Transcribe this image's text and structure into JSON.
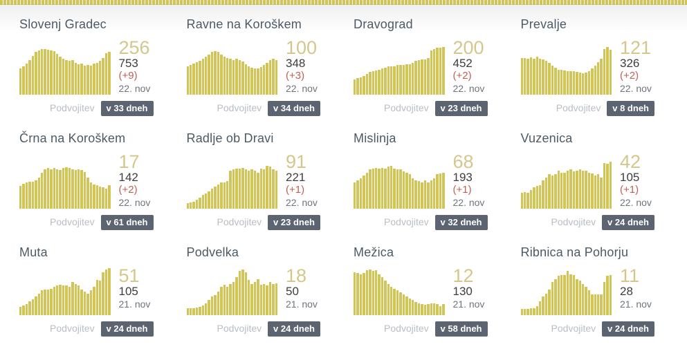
{
  "labels": {
    "doubling": "Podvojitev"
  },
  "colors": {
    "bar": "#d3c456",
    "big_number": "#d5c78c",
    "total": "#3c3c3c",
    "delta_red": "#bf6055",
    "date_gray": "#6d747d",
    "doubling_label_gray": "#b8bec4",
    "badge_bg": "#5b6470",
    "badge_text": "#ffffff",
    "title": "#4c5a66"
  },
  "chart_data": [
    {
      "type": "bar",
      "title": "Slovenj Gradec",
      "latest": "256",
      "total": "753",
      "delta": "(+9)",
      "date": "22. nov",
      "doubling": "v 33 dneh",
      "values": [
        0.55,
        0.58,
        0.64,
        0.72,
        0.8,
        0.88,
        0.92,
        0.94,
        0.95,
        0.93,
        0.92,
        0.9,
        0.84,
        0.79,
        0.74,
        0.72,
        0.7,
        0.71,
        0.66,
        0.63,
        0.64,
        0.6,
        0.62,
        0.6,
        0.64,
        0.66,
        0.7,
        0.76,
        0.86,
        0.88
      ]
    },
    {
      "type": "bar",
      "title": "Ravne na Koroškem",
      "latest": "100",
      "total": "348",
      "delta": "(+3)",
      "date": "22. nov",
      "doubling": "v 34 dneh",
      "values": [
        0.58,
        0.61,
        0.64,
        0.67,
        0.7,
        0.74,
        0.78,
        0.83,
        0.88,
        0.9,
        0.88,
        0.83,
        0.79,
        0.76,
        0.74,
        0.72,
        0.74,
        0.72,
        0.68,
        0.63,
        0.59,
        0.56,
        0.54,
        0.54,
        0.57,
        0.61,
        0.66,
        0.72,
        0.74,
        0.72
      ]
    },
    {
      "type": "bar",
      "title": "Dravograd",
      "latest": "200",
      "total": "452",
      "delta": "(+2)",
      "date": "22. nov",
      "doubling": "v 23 dneh",
      "values": [
        0.32,
        0.34,
        0.36,
        0.39,
        0.43,
        0.47,
        0.49,
        0.5,
        0.52,
        0.54,
        0.56,
        0.58,
        0.59,
        0.59,
        0.61,
        0.61,
        0.62,
        0.63,
        0.63,
        0.66,
        0.7,
        0.72,
        0.73,
        0.73,
        0.76,
        0.91,
        0.95,
        0.97,
        0.97,
        0.98
      ]
    },
    {
      "type": "bar",
      "title": "Prevalje",
      "latest": "121",
      "total": "326",
      "delta": "(+2)",
      "date": "22. nov",
      "doubling": "v 8 dneh",
      "values": [
        0.76,
        0.76,
        0.75,
        0.77,
        0.75,
        0.78,
        0.74,
        0.73,
        0.7,
        0.66,
        0.6,
        0.56,
        0.52,
        0.51,
        0.5,
        0.49,
        0.48,
        0.48,
        0.47,
        0.46,
        0.45,
        0.46,
        0.49,
        0.54,
        0.6,
        0.67,
        0.75,
        0.95,
        0.98,
        0.93
      ]
    },
    {
      "type": "bar",
      "title": "Črna na Koroškem",
      "latest": "17",
      "total": "142",
      "delta": "(+2)",
      "date": "22. nov",
      "doubling": "v 61 dneh",
      "values": [
        0.47,
        0.52,
        0.54,
        0.56,
        0.56,
        0.59,
        0.65,
        0.74,
        0.82,
        0.84,
        0.82,
        0.84,
        0.82,
        0.8,
        0.84,
        0.86,
        0.84,
        0.82,
        0.8,
        0.82,
        0.8,
        0.76,
        0.64,
        0.54,
        0.5,
        0.48,
        0.46,
        0.44,
        0.42,
        0.48
      ]
    },
    {
      "type": "bar",
      "title": "Radlje ob Dravi",
      "latest": "91",
      "total": "221",
      "delta": "(+1)",
      "date": "22. nov",
      "doubling": "v 23 dneh",
      "values": [
        0.12,
        0.13,
        0.15,
        0.18,
        0.23,
        0.28,
        0.32,
        0.36,
        0.42,
        0.46,
        0.5,
        0.54,
        0.54,
        0.57,
        0.78,
        0.81,
        0.83,
        0.83,
        0.85,
        0.81,
        0.78,
        0.81,
        0.79,
        0.75,
        0.83,
        0.81,
        0.88,
        0.87,
        0.81,
        0.78
      ]
    },
    {
      "type": "bar",
      "title": "Mislinja",
      "latest": "68",
      "total": "193",
      "delta": "(+1)",
      "date": "22. nov",
      "doubling": "v 32 dneh",
      "values": [
        0.54,
        0.58,
        0.63,
        0.69,
        0.75,
        0.81,
        0.83,
        0.85,
        0.83,
        0.85,
        0.83,
        0.87,
        0.88,
        0.83,
        0.81,
        0.81,
        0.77,
        0.75,
        0.71,
        0.63,
        0.59,
        0.57,
        0.55,
        0.58,
        0.55,
        0.59,
        0.63,
        0.71,
        0.73,
        0.75
      ]
    },
    {
      "type": "bar",
      "title": "Vuzenica",
      "latest": "42",
      "total": "105",
      "delta": "(+1)",
      "date": "22. nov",
      "doubling": "v 24 dneh",
      "values": [
        0.33,
        0.35,
        0.33,
        0.38,
        0.45,
        0.47,
        0.49,
        0.58,
        0.65,
        0.71,
        0.68,
        0.71,
        0.78,
        0.75,
        0.75,
        0.78,
        0.81,
        0.77,
        0.79,
        0.81,
        0.78,
        0.79,
        0.75,
        0.73,
        0.68,
        0.71,
        0.65,
        0.95,
        0.93,
        0.97
      ]
    },
    {
      "type": "bar",
      "title": "Muta",
      "latest": "51",
      "total": "105",
      "delta": "",
      "date": "21. nov",
      "doubling": "v 24 dneh",
      "values": [
        0.17,
        0.2,
        0.23,
        0.28,
        0.33,
        0.38,
        0.45,
        0.51,
        0.53,
        0.53,
        0.55,
        0.58,
        0.61,
        0.63,
        0.61,
        0.61,
        0.59,
        0.68,
        0.65,
        0.61,
        0.53,
        0.48,
        0.45,
        0.51,
        0.58,
        0.73,
        0.71,
        0.88,
        0.95,
        0.97
      ]
    },
    {
      "type": "bar",
      "title": "Podvelka",
      "latest": "18",
      "total": "50",
      "delta": "",
      "date": "21. nov",
      "doubling": "v 24 dneh",
      "values": [
        0.14,
        0.14,
        0.15,
        0.16,
        0.17,
        0.2,
        0.25,
        0.31,
        0.38,
        0.41,
        0.48,
        0.58,
        0.63,
        0.58,
        0.65,
        0.68,
        0.78,
        0.92,
        0.95,
        0.88,
        0.73,
        0.65,
        0.68,
        0.75,
        0.63,
        0.65,
        0.61,
        0.68,
        0.65,
        0.66
      ]
    },
    {
      "type": "bar",
      "title": "Mežica",
      "latest": "12",
      "total": "130",
      "delta": "",
      "date": "21. nov",
      "doubling": "v 58 dneh",
      "values": [
        0.88,
        0.87,
        0.85,
        0.87,
        0.93,
        0.95,
        0.91,
        0.93,
        0.85,
        0.79,
        0.71,
        0.65,
        0.59,
        0.55,
        0.51,
        0.47,
        0.43,
        0.39,
        0.35,
        0.31,
        0.27,
        0.25,
        0.23,
        0.21,
        0.23,
        0.25,
        0.25,
        0.23,
        0.19,
        0.23
      ]
    },
    {
      "type": "bar",
      "title": "Ribnica na Pohorju",
      "latest": "11",
      "total": "28",
      "delta": "",
      "date": "21. nov",
      "doubling": "v 24 dneh",
      "values": [
        0.13,
        0.13,
        0.13,
        0.15,
        0.15,
        0.18,
        0.28,
        0.38,
        0.45,
        0.53,
        0.68,
        0.75,
        0.81,
        0.83,
        0.83,
        0.92,
        0.85,
        0.83,
        0.75,
        0.71,
        0.65,
        0.58,
        0.51,
        0.43,
        0.43,
        0.43,
        0.43,
        0.68,
        0.81,
        0.83
      ]
    }
  ]
}
